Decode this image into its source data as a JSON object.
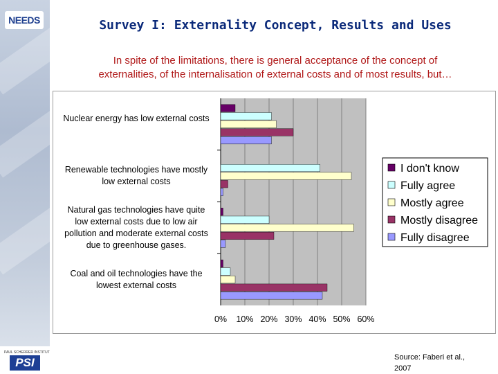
{
  "branding": {
    "top_logo_text": "NEEDS",
    "bottom_logo_small_text": "PAUL SCHERRER INSTITUT",
    "bottom_logo_text": "PSI"
  },
  "slide": {
    "title": "Survey I: Externality Concept, Results and Uses",
    "subtitle_line1": "In spite of the limitations, there is general acceptance of the concept of",
    "subtitle_line2": "externalities, of the internalisation of external costs and of most results, but…",
    "source_line1": "Source: Faberi et al.,",
    "source_line2": "2007"
  },
  "colors": {
    "title": "#0b2a7a",
    "subtitle": "#b01818",
    "plot_background": "#c0c0c0"
  },
  "chart_data": {
    "type": "bar",
    "orientation": "horizontal",
    "categories": [
      "Nuclear energy has low external costs",
      "Renewable technologies have mostly low external costs",
      "Natural gas technologies have quite low external costs due to low air pollution and moderate external costs due to greenhouse gases.",
      "Coal and oil technologies have the lowest external costs"
    ],
    "category_lines": [
      [
        "Nuclear energy has low external costs"
      ],
      [
        "Renewable technologies have mostly",
        "low external costs"
      ],
      [
        "Natural gas technologies have quite",
        "low external costs due to low air",
        "pollution and moderate external costs",
        "due to greenhouse gases."
      ],
      [
        "Coal and oil technologies have the",
        "lowest external costs"
      ]
    ],
    "series": [
      {
        "name": "I don't know",
        "color": "#660066",
        "values": [
          6,
          0,
          1,
          1
        ]
      },
      {
        "name": "Fully agree",
        "color": "#ccffff",
        "values": [
          21,
          41,
          20,
          4
        ]
      },
      {
        "name": "Mostly agree",
        "color": "#ffffcc",
        "values": [
          23,
          54,
          55,
          6
        ]
      },
      {
        "name": "Mostly disagree",
        "color": "#993366",
        "values": [
          30,
          3,
          22,
          44
        ]
      },
      {
        "name": "Fully disagree",
        "color": "#9999ff",
        "values": [
          21,
          1,
          2,
          42
        ]
      }
    ],
    "x_ticks": [
      "0%",
      "10%",
      "20%",
      "30%",
      "40%",
      "50%",
      "60%"
    ],
    "xlim": [
      0,
      60
    ],
    "unit": "%",
    "grid": true,
    "legend_position": "right",
    "xlabel": "",
    "ylabel": ""
  }
}
